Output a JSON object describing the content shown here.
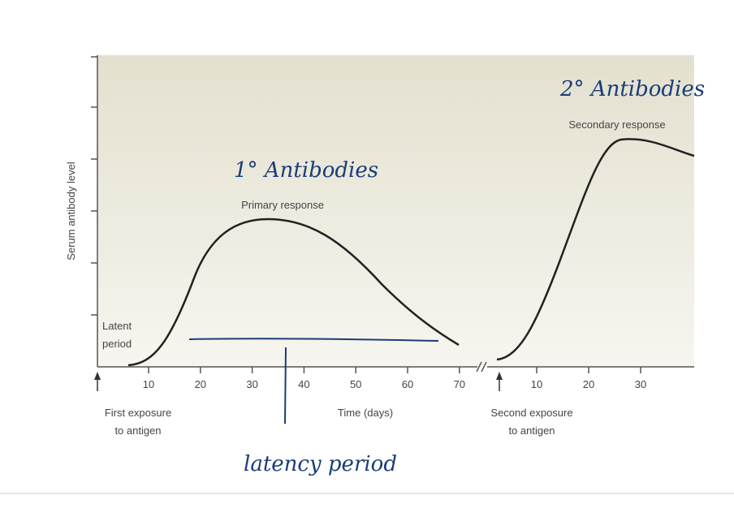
{
  "y_axis_label": "Serum antibody level",
  "curves": {
    "primary": "Primary response",
    "secondary": "Secondary response"
  },
  "latent_label": [
    "Latent",
    "period"
  ],
  "primary_axis": {
    "ticks": [
      10,
      20,
      30,
      40,
      50,
      60,
      70
    ],
    "label": "Time (days)"
  },
  "secondary_axis": {
    "ticks": [
      10,
      20,
      30
    ]
  },
  "first_exposure": [
    "First exposure",
    "to antigen"
  ],
  "second_exposure": [
    "Second exposure",
    "to antigen"
  ],
  "handwritten": {
    "primary": "1° Antibodies",
    "secondary": "2° Antibodies",
    "latency": "latency period"
  }
}
